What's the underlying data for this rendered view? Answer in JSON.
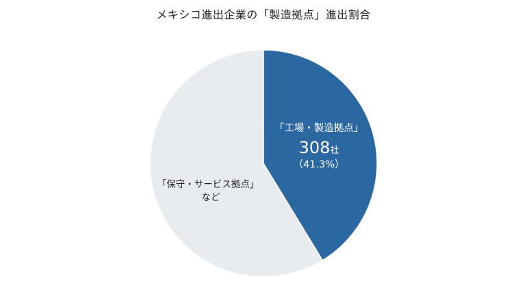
{
  "chart_data": {
    "type": "pie",
    "title": "メキシコ進出企業の「製造拠点」進出割合",
    "colors": {
      "manufacturing": "#2b67a0",
      "other": "#e8ebef",
      "label_dark": "#222222",
      "label_light": "#ffffff"
    },
    "slices": [
      {
        "name": "「工場・製造拠点」",
        "value": 308,
        "count_text": "308",
        "unit": "社",
        "percent": 41.3,
        "percent_text": "（41.3%）"
      },
      {
        "name": "「保守・サービス拠点」",
        "name_line2": "など",
        "percent": 58.7
      }
    ]
  }
}
